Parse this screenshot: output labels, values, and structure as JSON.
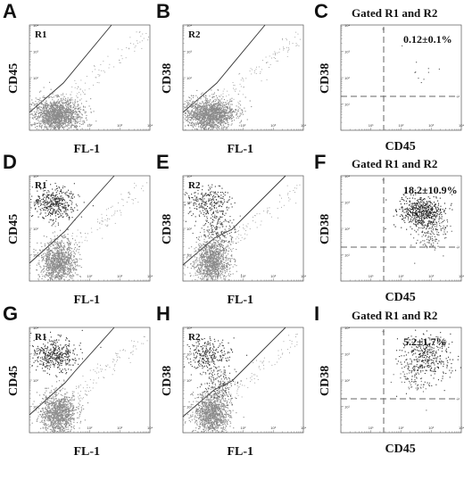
{
  "figure": {
    "panels": [
      {
        "letter": "A",
        "type": "gate",
        "gate_label": "R1",
        "xlabel": "FL-1",
        "ylabel": "CD45",
        "pop": "neg"
      },
      {
        "letter": "B",
        "type": "gate",
        "gate_label": "R2",
        "xlabel": "FL-1",
        "ylabel": "CD38",
        "pop": "neg"
      },
      {
        "letter": "C",
        "type": "quad",
        "title": "Gated R1 and R2",
        "percent": "0.12±0.1%",
        "xlabel": "CD45",
        "ylabel": "CD38",
        "pop": "sparse"
      },
      {
        "letter": "D",
        "type": "gate",
        "gate_label": "R1",
        "xlabel": "FL-1",
        "ylabel": "CD45",
        "pop": "two"
      },
      {
        "letter": "E",
        "type": "gate",
        "gate_label": "R2",
        "xlabel": "FL-1",
        "ylabel": "CD38",
        "pop": "two"
      },
      {
        "letter": "F",
        "type": "quad",
        "title": "Gated R1 and R2",
        "percent": "18.2±10.9%",
        "xlabel": "CD45",
        "ylabel": "CD38",
        "pop": "dense"
      },
      {
        "letter": "G",
        "type": "gate",
        "gate_label": "R1",
        "xlabel": "FL-1",
        "ylabel": "CD45",
        "pop": "two"
      },
      {
        "letter": "H",
        "type": "gate",
        "gate_label": "R2",
        "xlabel": "FL-1",
        "ylabel": "CD38",
        "pop": "two"
      },
      {
        "letter": "I",
        "type": "quad",
        "title": "Gated R1 and R2",
        "percent": "5.2±1.7%",
        "xlabel": "CD45",
        "ylabel": "CD38",
        "pop": "medium"
      }
    ],
    "ticks": [
      "10⁰",
      "10¹",
      "10²",
      "10³",
      "10⁴"
    ]
  }
}
